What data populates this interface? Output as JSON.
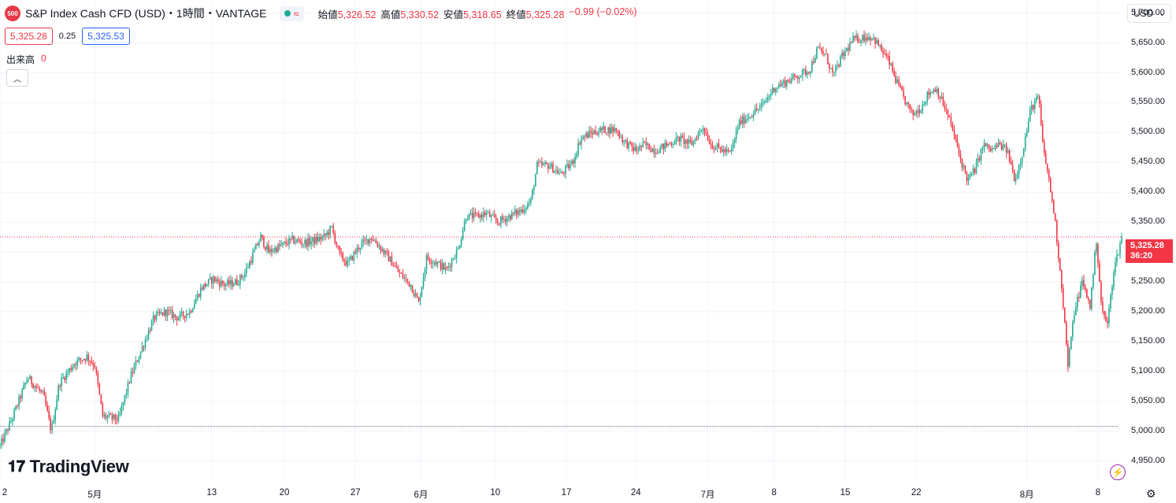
{
  "header": {
    "badge": "500",
    "title": "S&P Index Cash CFD (USD)・1時間・VANTAGE",
    "status_icon": "market-open-dot",
    "approx": "≈",
    "ohlc": [
      {
        "label": "始値",
        "value": "5,326.52"
      },
      {
        "label": "高値",
        "value": "5,330.52"
      },
      {
        "label": "安値",
        "value": "5,318.65"
      },
      {
        "label": "終値",
        "value": "5,325.28"
      },
      {
        "label": "",
        "value": "−0.99 (−0.02%)"
      }
    ]
  },
  "quote": {
    "sell": "5,325.28",
    "spread": "0.25",
    "buy": "5,325.53"
  },
  "volume": {
    "label": "出来高",
    "value": "0"
  },
  "currency": "USD",
  "logo": "TradingView",
  "price_tag": {
    "price": "5,325.28",
    "countdown": "36:20"
  },
  "colors": {
    "up": "#22ab94",
    "down": "#f23645",
    "grid": "#f0f3fa"
  },
  "chart_data": {
    "type": "candlestick",
    "timeframe": "1時間",
    "y_ticks": [
      4950,
      5000,
      5050,
      5100,
      5150,
      5200,
      5250,
      5300,
      5350,
      5400,
      5450,
      5500,
      5550,
      5600,
      5650,
      5700
    ],
    "y_tick_labels": [
      "4,950.00",
      "5,000.00",
      "5,050.00",
      "5,100.00",
      "5,150.00",
      "5,200.00",
      "5,250.00",
      "5,300.00",
      "5,350.00",
      "5,400.00",
      "5,450.00",
      "5,500.00",
      "5,550.00",
      "5,600.00",
      "5,650.00",
      "5,700.00"
    ],
    "ylim": [
      4918,
      5722
    ],
    "x_tick_labels": [
      "2",
      "5月",
      "13",
      "20",
      "27",
      "6月",
      "10",
      "17",
      "24",
      "7月",
      "8",
      "15",
      "22",
      "8月",
      "8"
    ],
    "x_tick_bars": [
      0,
      120,
      268,
      360,
      450,
      533,
      627,
      717,
      805,
      896,
      980,
      1070,
      1160,
      1300,
      1390
    ],
    "x_total_bars": 1420,
    "last_price": 5325.28,
    "horizontal_line": 5008,
    "path": [
      [
        0,
        4975
      ],
      [
        15,
        5020
      ],
      [
        35,
        5090
      ],
      [
        55,
        5060
      ],
      [
        65,
        5000
      ],
      [
        75,
        5080
      ],
      [
        95,
        5115
      ],
      [
        110,
        5125
      ],
      [
        120,
        5110
      ],
      [
        130,
        5025
      ],
      [
        150,
        5020
      ],
      [
        165,
        5090
      ],
      [
        180,
        5140
      ],
      [
        195,
        5190
      ],
      [
        210,
        5200
      ],
      [
        225,
        5190
      ],
      [
        240,
        5200
      ],
      [
        255,
        5240
      ],
      [
        270,
        5255
      ],
      [
        285,
        5245
      ],
      [
        300,
        5250
      ],
      [
        310,
        5265
      ],
      [
        320,
        5295
      ],
      [
        330,
        5325
      ],
      [
        340,
        5300
      ],
      [
        355,
        5310
      ],
      [
        370,
        5320
      ],
      [
        385,
        5315
      ],
      [
        400,
        5320
      ],
      [
        410,
        5325
      ],
      [
        420,
        5340
      ],
      [
        430,
        5295
      ],
      [
        440,
        5280
      ],
      [
        455,
        5310
      ],
      [
        470,
        5325
      ],
      [
        480,
        5310
      ],
      [
        495,
        5285
      ],
      [
        505,
        5265
      ],
      [
        520,
        5245
      ],
      [
        530,
        5215
      ],
      [
        540,
        5290
      ],
      [
        550,
        5285
      ],
      [
        565,
        5270
      ],
      [
        580,
        5305
      ],
      [
        590,
        5360
      ],
      [
        605,
        5360
      ],
      [
        615,
        5365
      ],
      [
        630,
        5350
      ],
      [
        645,
        5360
      ],
      [
        660,
        5370
      ],
      [
        672,
        5385
      ],
      [
        680,
        5445
      ],
      [
        695,
        5445
      ],
      [
        710,
        5430
      ],
      [
        725,
        5450
      ],
      [
        735,
        5490
      ],
      [
        750,
        5500
      ],
      [
        765,
        5505
      ],
      [
        780,
        5505
      ],
      [
        790,
        5485
      ],
      [
        805,
        5470
      ],
      [
        815,
        5480
      ],
      [
        830,
        5470
      ],
      [
        845,
        5480
      ],
      [
        860,
        5490
      ],
      [
        875,
        5480
      ],
      [
        890,
        5510
      ],
      [
        900,
        5480
      ],
      [
        915,
        5470
      ],
      [
        925,
        5465
      ],
      [
        935,
        5515
      ],
      [
        950,
        5530
      ],
      [
        965,
        5545
      ],
      [
        980,
        5575
      ],
      [
        995,
        5585
      ],
      [
        1010,
        5595
      ],
      [
        1025,
        5605
      ],
      [
        1035,
        5640
      ],
      [
        1045,
        5630
      ],
      [
        1055,
        5595
      ],
      [
        1065,
        5625
      ],
      [
        1080,
        5655
      ],
      [
        1095,
        5660
      ],
      [
        1105,
        5660
      ],
      [
        1115,
        5640
      ],
      [
        1125,
        5620
      ],
      [
        1135,
        5585
      ],
      [
        1145,
        5555
      ],
      [
        1155,
        5530
      ],
      [
        1165,
        5540
      ],
      [
        1175,
        5565
      ],
      [
        1185,
        5575
      ],
      [
        1195,
        5545
      ],
      [
        1205,
        5510
      ],
      [
        1215,
        5460
      ],
      [
        1225,
        5420
      ],
      [
        1235,
        5440
      ],
      [
        1245,
        5480
      ],
      [
        1255,
        5470
      ],
      [
        1265,
        5480
      ],
      [
        1275,
        5470
      ],
      [
        1285,
        5420
      ],
      [
        1295,
        5470
      ],
      [
        1305,
        5540
      ],
      [
        1315,
        5560
      ],
      [
        1320,
        5480
      ],
      [
        1328,
        5420
      ],
      [
        1335,
        5360
      ],
      [
        1345,
        5230
      ],
      [
        1352,
        5110
      ],
      [
        1360,
        5200
      ],
      [
        1370,
        5250
      ],
      [
        1380,
        5210
      ],
      [
        1388,
        5320
      ],
      [
        1395,
        5200
      ],
      [
        1402,
        5180
      ],
      [
        1410,
        5270
      ],
      [
        1420,
        5325
      ]
    ]
  }
}
